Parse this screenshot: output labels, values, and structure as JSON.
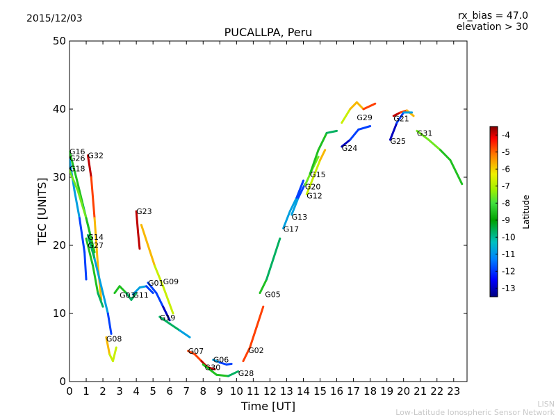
{
  "header": {
    "date": "2015/12/03",
    "rx_bias": "rx_bias = 47.0",
    "elevation": "elevation > 30"
  },
  "credits": {
    "line1": "LISN",
    "line2": "Low-Latitude Ionospheric Sensor Network"
  },
  "colors": {
    "ramp": [
      "#00007f",
      "#0000ff",
      "#0080ff",
      "#00c0c0",
      "#00a000",
      "#40e040",
      "#a0f000",
      "#f0f000",
      "#ff8000",
      "#ff0000",
      "#7f0000"
    ]
  },
  "chart_data": {
    "type": "scatter",
    "title": "PUCALLPA, Peru",
    "xlabel": "Time [UT]",
    "ylabel": "TEC [UNITS]",
    "xlim": [
      0,
      23.8
    ],
    "ylim": [
      0,
      50
    ],
    "xticks": [
      0,
      1,
      2,
      3,
      4,
      5,
      6,
      7,
      8,
      9,
      10,
      11,
      12,
      13,
      14,
      15,
      16,
      17,
      18,
      19,
      20,
      21,
      22,
      23
    ],
    "yticks": [
      0,
      10,
      20,
      30,
      40,
      50
    ],
    "colorbar": {
      "label": "Latitude",
      "min": -13.5,
      "max": -3.5,
      "ticks": [
        -4,
        -5,
        -6,
        -7,
        -8,
        -9,
        -10,
        -11,
        -12,
        -13
      ]
    },
    "satellites": [
      {
        "name": "G16",
        "label_at": [
          0.0,
          33.8
        ],
        "lat": [
          -9,
          -9,
          -10,
          -10,
          -10
        ],
        "points": [
          [
            0.0,
            33.8
          ],
          [
            0.4,
            30.0
          ],
          [
            0.8,
            26.0
          ],
          [
            1.2,
            22.0
          ],
          [
            1.5,
            18.0
          ]
        ]
      },
      {
        "name": "G26",
        "label_at": [
          0.0,
          32.8
        ],
        "lat": [
          -11,
          -11,
          -12,
          -12,
          -13
        ],
        "points": [
          [
            0.0,
            32.6
          ],
          [
            0.3,
            28.0
          ],
          [
            0.6,
            24.0
          ],
          [
            0.9,
            19.0
          ],
          [
            1.0,
            15.0
          ]
        ]
      },
      {
        "name": "G18",
        "label_at": [
          0.0,
          31.3
        ],
        "lat": [
          -8,
          -8,
          -9,
          -9
        ],
        "points": [
          [
            0.0,
            31.0
          ],
          [
            0.5,
            28.0
          ],
          [
            1.0,
            24.0
          ],
          [
            1.5,
            19.0
          ]
        ]
      },
      {
        "name": "G32",
        "label_at": [
          1.1,
          33.2
        ],
        "lat": [
          -4,
          -5,
          -6,
          -6,
          -7
        ],
        "points": [
          [
            1.1,
            33.2
          ],
          [
            1.3,
            30.0
          ],
          [
            1.5,
            24.0
          ],
          [
            1.7,
            17.0
          ],
          [
            1.9,
            12.0
          ]
        ]
      },
      {
        "name": "G14",
        "label_at": [
          1.1,
          21.2
        ],
        "lat": [
          -10,
          -11,
          -11,
          -12,
          -12
        ],
        "points": [
          [
            1.1,
            21.5
          ],
          [
            1.5,
            18.0
          ],
          [
            1.9,
            14.0
          ],
          [
            2.3,
            10.0
          ],
          [
            2.5,
            7.0
          ]
        ]
      },
      {
        "name": "G27",
        "label_at": [
          1.1,
          20.0
        ],
        "lat": [
          -9,
          -9,
          -10,
          -10
        ],
        "points": [
          [
            1.0,
            21.0
          ],
          [
            1.4,
            17.0
          ],
          [
            1.7,
            13.0
          ],
          [
            2.0,
            11.0
          ]
        ]
      },
      {
        "name": "G23",
        "label_at": [
          4.0,
          25.0
        ],
        "lat": [
          -4,
          -4,
          -5
        ],
        "points": [
          [
            4.0,
            25.0
          ],
          [
            4.1,
            22.0
          ],
          [
            4.2,
            19.5
          ]
        ]
      },
      {
        "name": "G03",
        "label_at": [
          3.0,
          12.7
        ],
        "lat": [
          -9,
          -9,
          -10,
          -10,
          -9
        ],
        "points": [
          [
            2.7,
            13.0
          ],
          [
            3.0,
            14.0
          ],
          [
            3.4,
            13.0
          ],
          [
            3.7,
            12.0
          ],
          [
            4.0,
            13.0
          ]
        ]
      },
      {
        "name": "G11",
        "label_at": [
          3.8,
          12.7
        ],
        "lat": [
          -11,
          -11,
          -12,
          -12
        ],
        "points": [
          [
            3.8,
            12.8
          ],
          [
            4.2,
            13.8
          ],
          [
            4.6,
            14.0
          ],
          [
            5.0,
            13.0
          ]
        ]
      },
      {
        "name": "G01",
        "label_at": [
          4.7,
          14.5
        ],
        "lat": [
          -12,
          -12,
          -13,
          -13
        ],
        "points": [
          [
            4.7,
            14.5
          ],
          [
            5.2,
            13.0
          ],
          [
            5.6,
            11.0
          ],
          [
            6.0,
            9.0
          ]
        ]
      },
      {
        "name": "G09",
        "label_at": [
          5.6,
          14.7
        ],
        "lat": [
          -6,
          -6,
          -7,
          -7,
          -8
        ],
        "points": [
          [
            4.3,
            23.0
          ],
          [
            4.7,
            20.0
          ],
          [
            5.1,
            17.0
          ],
          [
            5.6,
            14.0
          ],
          [
            6.2,
            10.0
          ]
        ]
      },
      {
        "name": "G19",
        "label_at": [
          5.4,
          9.4
        ],
        "lat": [
          -10,
          -10,
          -11,
          -11
        ],
        "points": [
          [
            5.4,
            9.5
          ],
          [
            6.0,
            8.5
          ],
          [
            6.6,
            7.5
          ],
          [
            7.2,
            6.5
          ]
        ]
      },
      {
        "name": "G08",
        "label_at": [
          2.2,
          6.3
        ],
        "lat": [
          -6,
          -7,
          -7,
          -8
        ],
        "points": [
          [
            2.2,
            6.5
          ],
          [
            2.4,
            4.0
          ],
          [
            2.6,
            3.0
          ],
          [
            2.8,
            5.0
          ]
        ]
      },
      {
        "name": "G07",
        "label_at": [
          7.1,
          4.5
        ],
        "lat": [
          -5,
          -5,
          -4,
          -4
        ],
        "points": [
          [
            7.1,
            4.5
          ],
          [
            7.5,
            4.0
          ],
          [
            7.9,
            3.0
          ],
          [
            8.3,
            2.0
          ]
        ]
      },
      {
        "name": "G06",
        "label_at": [
          8.6,
          3.2
        ],
        "lat": [
          -11,
          -12,
          -12,
          -13
        ],
        "points": [
          [
            8.6,
            3.2
          ],
          [
            9.0,
            2.8
          ],
          [
            9.4,
            2.5
          ],
          [
            9.7,
            2.6
          ]
        ]
      },
      {
        "name": "G30",
        "label_at": [
          8.1,
          2.1
        ],
        "lat": [
          -4,
          -4,
          -5
        ],
        "points": [
          [
            8.1,
            2.3
          ],
          [
            8.4,
            2.0
          ],
          [
            8.7,
            1.8
          ]
        ]
      },
      {
        "name": "G28",
        "label_at": [
          10.1,
          1.2
        ],
        "lat": [
          -9,
          -9,
          -10,
          -10
        ],
        "points": [
          [
            8.0,
            2.5
          ],
          [
            8.8,
            1.0
          ],
          [
            9.5,
            0.8
          ],
          [
            10.1,
            1.5
          ]
        ]
      },
      {
        "name": "G02",
        "label_at": [
          10.7,
          4.6
        ],
        "lat": [
          -5,
          -5,
          -5,
          -6
        ],
        "points": [
          [
            10.4,
            3.0
          ],
          [
            10.8,
            5.0
          ],
          [
            11.2,
            8.0
          ],
          [
            11.6,
            11.0
          ]
        ]
      },
      {
        "name": "G05",
        "label_at": [
          11.7,
          12.8
        ],
        "lat": [
          -9,
          -10,
          -10,
          -11
        ],
        "points": [
          [
            11.4,
            13.0
          ],
          [
            11.8,
            15.0
          ],
          [
            12.2,
            18.0
          ],
          [
            12.6,
            21.0
          ]
        ]
      },
      {
        "name": "G17",
        "label_at": [
          12.8,
          22.4
        ],
        "lat": [
          -11,
          -11,
          -12,
          -12
        ],
        "points": [
          [
            12.8,
            22.5
          ],
          [
            13.2,
            25.0
          ],
          [
            13.6,
            27.0
          ],
          [
            14.0,
            29.5
          ]
        ]
      },
      {
        "name": "G13",
        "label_at": [
          13.3,
          24.2
        ],
        "lat": [
          -11,
          -12,
          -12
        ],
        "points": [
          [
            13.3,
            24.5
          ],
          [
            13.7,
            27.0
          ],
          [
            14.1,
            29.0
          ]
        ]
      },
      {
        "name": "G12",
        "label_at": [
          14.2,
          27.3
        ],
        "lat": [
          -7,
          -7,
          -6,
          -5
        ],
        "points": [
          [
            14.2,
            27.5
          ],
          [
            14.6,
            30.0
          ],
          [
            15.0,
            32.5
          ],
          [
            15.3,
            34.0
          ]
        ]
      },
      {
        "name": "G20",
        "label_at": [
          14.1,
          28.6
        ],
        "lat": [
          -8,
          -8,
          -9
        ],
        "points": [
          [
            14.1,
            28.8
          ],
          [
            14.5,
            31.0
          ],
          [
            14.9,
            33.0
          ]
        ]
      },
      {
        "name": "G15",
        "label_at": [
          14.4,
          30.4
        ],
        "lat": [
          -9,
          -9,
          -10,
          -10
        ],
        "points": [
          [
            14.4,
            30.5
          ],
          [
            14.9,
            34.0
          ],
          [
            15.4,
            36.5
          ],
          [
            16.0,
            36.8
          ]
        ]
      },
      {
        "name": "G24",
        "label_at": [
          16.3,
          34.3
        ],
        "lat": [
          -13,
          -12,
          -12,
          -11
        ],
        "points": [
          [
            16.3,
            34.5
          ],
          [
            16.8,
            35.5
          ],
          [
            17.3,
            37.0
          ],
          [
            18.0,
            37.5
          ]
        ]
      },
      {
        "name": "G29",
        "label_at": [
          17.2,
          38.8
        ],
        "lat": [
          -7,
          -6,
          -6,
          -5,
          -4
        ],
        "points": [
          [
            16.3,
            38.0
          ],
          [
            16.8,
            40.0
          ],
          [
            17.2,
            41.0
          ],
          [
            17.6,
            40.0
          ],
          [
            18.3,
            40.8
          ]
        ]
      },
      {
        "name": "G21",
        "label_at": [
          19.4,
          38.6
        ],
        "lat": [
          -4,
          -5,
          -6,
          -5
        ],
        "points": [
          [
            19.4,
            39.0
          ],
          [
            19.8,
            39.5
          ],
          [
            20.2,
            39.8
          ],
          [
            20.6,
            39.0
          ]
        ]
      },
      {
        "name": "G25",
        "label_at": [
          19.2,
          35.3
        ],
        "lat": [
          -13,
          -12,
          -11,
          -11
        ],
        "points": [
          [
            19.2,
            35.5
          ],
          [
            19.6,
            38.0
          ],
          [
            20.0,
            39.5
          ],
          [
            20.5,
            39.5
          ]
        ]
      },
      {
        "name": "G31",
        "label_at": [
          20.8,
          36.5
        ],
        "lat": [
          -8,
          -8,
          -9,
          -9,
          -10
        ],
        "points": [
          [
            20.8,
            36.8
          ],
          [
            21.5,
            35.5
          ],
          [
            22.2,
            34.0
          ],
          [
            22.8,
            32.5
          ],
          [
            23.5,
            29.0
          ]
        ]
      }
    ]
  }
}
